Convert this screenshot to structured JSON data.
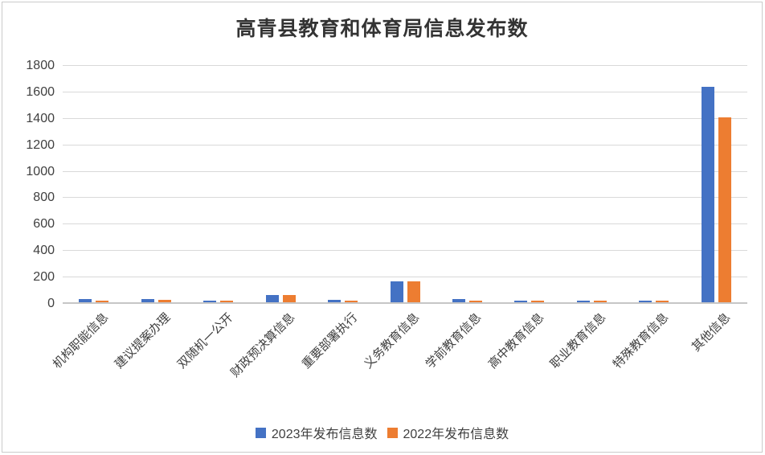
{
  "chart_data": {
    "type": "bar",
    "title": "高青县教育和体育局信息发布数",
    "categories": [
      "机构职能信息",
      "建议提案办理",
      "双随机一公开",
      "财政预决算信息",
      "重要部署执行",
      "义务教育信息",
      "学前教育信息",
      "高中教育信息",
      "职业教育信息",
      "特殊教育信息",
      "其他信息"
    ],
    "series": [
      {
        "name": "2023年发布信息数",
        "color": "#4472C4",
        "values": [
          25,
          22,
          12,
          55,
          20,
          160,
          22,
          15,
          15,
          15,
          1630
        ]
      },
      {
        "name": "2022年发布信息数",
        "color": "#ED7D31",
        "values": [
          12,
          20,
          10,
          55,
          15,
          160,
          12,
          12,
          12,
          12,
          1400
        ]
      }
    ],
    "xlabel": "",
    "ylabel": "",
    "ylim": [
      0,
      1800
    ],
    "ytick_step": 200,
    "grid": true,
    "legend_position": "bottom",
    "colors": {
      "gridline": "#D9D9D9",
      "axis_line": "#C6C6C6",
      "tick_text": "#404040",
      "title_text": "#333333"
    }
  }
}
